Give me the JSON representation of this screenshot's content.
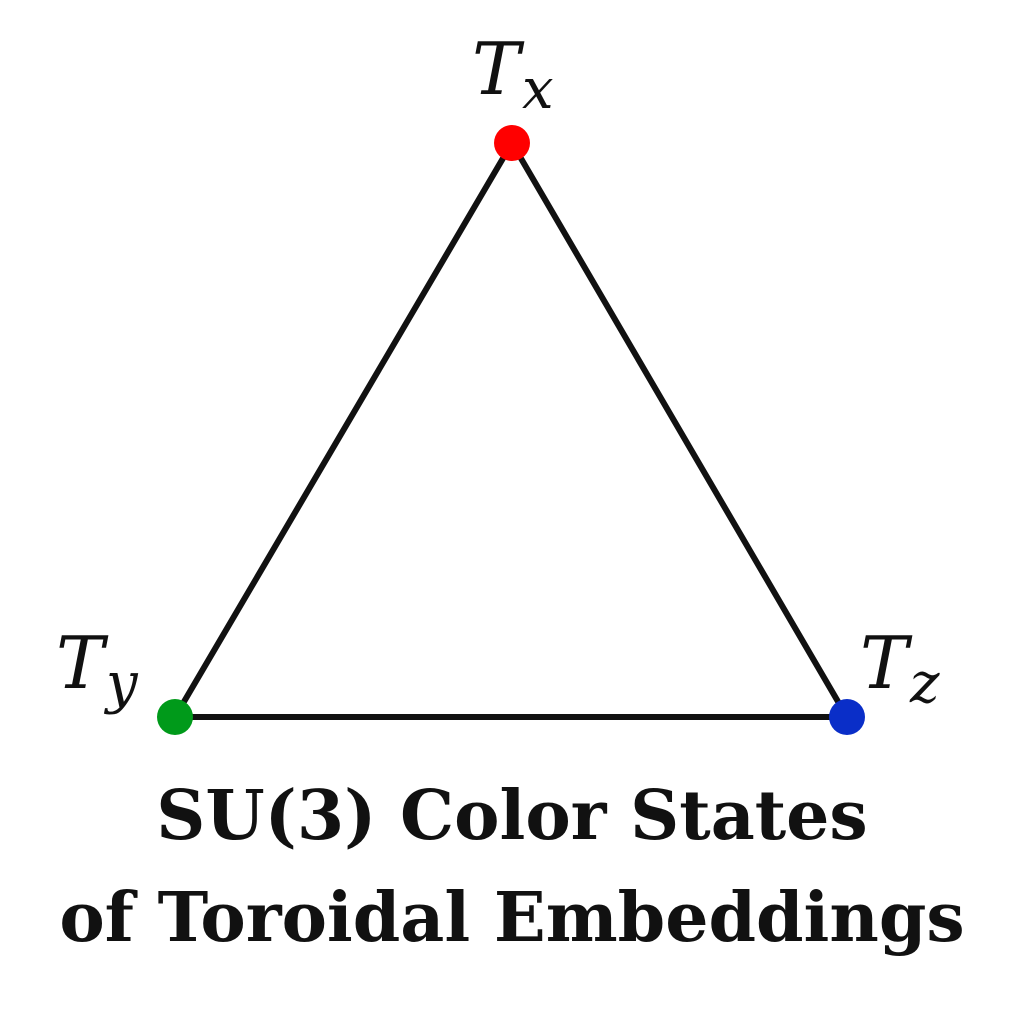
{
  "diagram": {
    "vertices": [
      {
        "id": "x",
        "symbol": "T",
        "subscript": "x",
        "color": "#ff0000"
      },
      {
        "id": "y",
        "symbol": "T",
        "subscript": "y",
        "color": "#009a1a"
      },
      {
        "id": "z",
        "symbol": "T",
        "subscript": "z",
        "color": "#0a2ec8"
      }
    ],
    "edges": [
      [
        "x",
        "y"
      ],
      [
        "y",
        "z"
      ],
      [
        "z",
        "x"
      ]
    ],
    "edge_color": "#111111"
  },
  "title": {
    "line1": "SU(3) Color States",
    "line2": "of Toroidal Embeddings"
  }
}
